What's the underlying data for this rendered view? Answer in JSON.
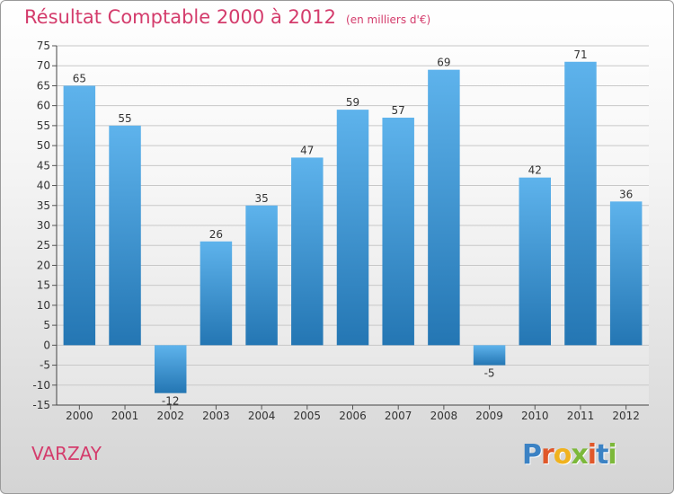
{
  "chart_data": {
    "type": "bar",
    "title": "Résultat Comptable 2000 à 2012",
    "subtitle": "(en milliers d'€)",
    "categories": [
      "2000",
      "2001",
      "2002",
      "2003",
      "2004",
      "2005",
      "2006",
      "2007",
      "2008",
      "2009",
      "2010",
      "2011",
      "2012"
    ],
    "values": [
      65,
      55,
      -12,
      26,
      35,
      47,
      59,
      57,
      69,
      -5,
      42,
      71,
      36
    ],
    "ylim": [
      -15,
      75
    ],
    "yticks": [
      -15,
      -10,
      -5,
      0,
      5,
      10,
      15,
      20,
      25,
      30,
      35,
      40,
      45,
      50,
      55,
      60,
      65,
      70,
      75
    ],
    "xlabel": "",
    "ylabel": "",
    "grid": true
  },
  "commune": "VARZAY",
  "logo": {
    "letters": [
      "P",
      "r",
      "o",
      "x",
      "i",
      "t",
      "i"
    ],
    "colors": [
      "#3b82c4",
      "#e0582a",
      "#f0b21e",
      "#7cb83a",
      "#e0582a",
      "#3b82c4",
      "#7cb83a"
    ]
  },
  "colors": {
    "bar_light": "#5eb3ec",
    "bar_dark": "#2476b3",
    "accent": "#d43c6c"
  }
}
